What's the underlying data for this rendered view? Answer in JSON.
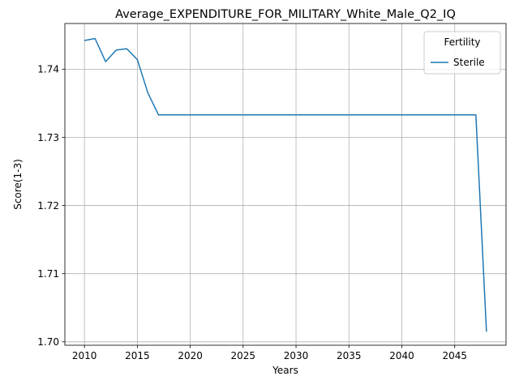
{
  "chart_data": {
    "type": "line",
    "title": "Average_EXPENDITURE_FOR_MILITARY_White_Male_Q2_IQ",
    "xlabel": "Years",
    "ylabel": "Score(1-3)",
    "xlim": [
      2008.15,
      2049.85
    ],
    "ylim": [
      1.6995,
      1.7467
    ],
    "xticks": [
      2010,
      2015,
      2020,
      2025,
      2030,
      2035,
      2040,
      2045
    ],
    "yticks": [
      1.7,
      1.71,
      1.72,
      1.73,
      1.74
    ],
    "ytick_labels": [
      "1.70",
      "1.71",
      "1.72",
      "1.73",
      "1.74"
    ],
    "grid": true,
    "legend": {
      "title": "Fertility",
      "placement": "top-right"
    },
    "series": [
      {
        "name": "Sterile",
        "color": "#1f77b4",
        "x": [
          2010,
          2011,
          2012,
          2013,
          2014,
          2015,
          2016,
          2017,
          2018,
          2019,
          2020,
          2021,
          2022,
          2023,
          2024,
          2025,
          2026,
          2027,
          2028,
          2029,
          2030,
          2031,
          2032,
          2033,
          2034,
          2035,
          2036,
          2037,
          2038,
          2039,
          2040,
          2041,
          2042,
          2043,
          2044,
          2045,
          2046,
          2047,
          2048
        ],
        "y": [
          1.7442,
          1.7445,
          1.7411,
          1.7428,
          1.743,
          1.7414,
          1.7365,
          1.7333,
          1.7333,
          1.7333,
          1.7333,
          1.7333,
          1.7333,
          1.7333,
          1.7333,
          1.7333,
          1.7333,
          1.7333,
          1.7333,
          1.7333,
          1.7333,
          1.7333,
          1.7333,
          1.7333,
          1.7333,
          1.7333,
          1.7333,
          1.7333,
          1.7333,
          1.7333,
          1.7333,
          1.7333,
          1.7333,
          1.7333,
          1.7333,
          1.7333,
          1.7333,
          1.7333,
          1.7015
        ]
      }
    ]
  }
}
